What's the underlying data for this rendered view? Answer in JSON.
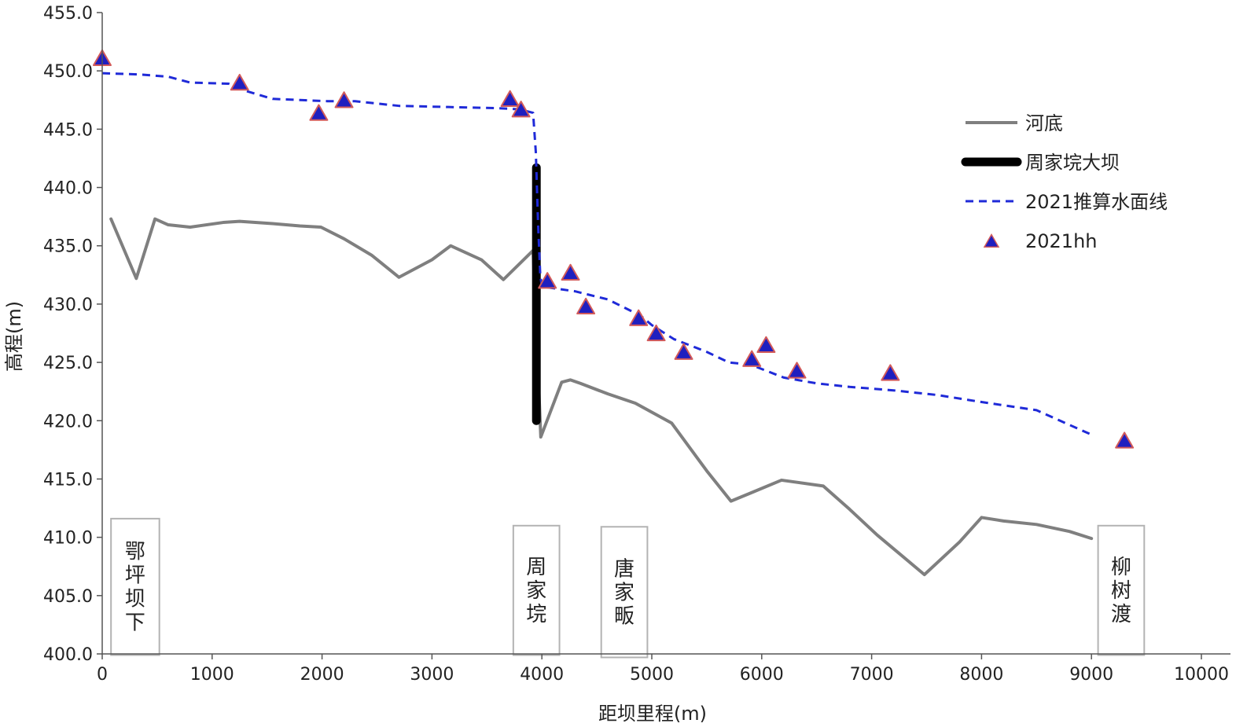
{
  "chart_data": {
    "type": "line",
    "title": "",
    "xlabel": "距坝里程(m)",
    "ylabel": "高程(m)",
    "xlim": [
      0,
      10000
    ],
    "ylim": [
      400,
      455
    ],
    "x_ticks": [
      0,
      1000,
      2000,
      3000,
      4000,
      5000,
      6000,
      7000,
      8000,
      9000,
      10000
    ],
    "y_ticks": [
      400.0,
      405.0,
      410.0,
      415.0,
      420.0,
      425.0,
      430.0,
      435.0,
      440.0,
      445.0,
      450.0,
      455.0
    ],
    "x_tick_labels": [
      "0",
      "1000",
      "2000",
      "3000",
      "4000",
      "5000",
      "6000",
      "7000",
      "8000",
      "9000",
      "10000"
    ],
    "y_tick_labels": [
      "400.0",
      "405.0",
      "410.0",
      "415.0",
      "420.0",
      "425.0",
      "430.0",
      "435.0",
      "440.0",
      "445.0",
      "450.0",
      "455.0"
    ],
    "grid": false,
    "legend_position": "right",
    "series": [
      {
        "name": "河底",
        "style": "line",
        "color": "#7f7f7f",
        "x": [
          80,
          310,
          480,
          600,
          800,
          1100,
          1250,
          1550,
          1800,
          1990,
          2200,
          2450,
          2700,
          3000,
          3170,
          3450,
          3650,
          3920,
          3990,
          4180,
          4260,
          4350,
          4600,
          4850,
          5180,
          5500,
          5720,
          5900,
          6180,
          6560,
          6800,
          7050,
          7480,
          7800,
          8000,
          8200,
          8500,
          8800,
          9000
        ],
        "y": [
          437.3,
          432.2,
          437.3,
          436.8,
          436.6,
          437.0,
          437.1,
          436.9,
          436.7,
          436.6,
          435.6,
          434.2,
          432.3,
          433.8,
          435.0,
          433.8,
          432.1,
          434.6,
          418.6,
          423.3,
          423.5,
          423.2,
          422.3,
          421.5,
          419.8,
          415.7,
          413.1,
          413.8,
          414.9,
          414.4,
          412.4,
          410.2,
          406.8,
          409.6,
          411.7,
          411.4,
          411.1,
          410.5,
          409.9
        ]
      },
      {
        "name": "周家垸大坝",
        "style": "thick-line",
        "color": "#000000",
        "x": [
          3950,
          3950
        ],
        "y": [
          441.7,
          420.0
        ]
      },
      {
        "name": "2021推算水面线",
        "style": "dashed-line",
        "color": "#1f2ad8",
        "x": [
          0,
          330,
          600,
          800,
          1150,
          1300,
          1550,
          1800,
          2050,
          2300,
          2700,
          3150,
          3600,
          3800,
          3920,
          3945,
          3950,
          3965,
          3985,
          4000,
          4300,
          4600,
          4900,
          5000,
          5200,
          5500,
          5700,
          5900,
          6200,
          6500,
          6800,
          7200,
          7600,
          8000,
          8500,
          9000
        ],
        "y": [
          449.8,
          449.7,
          449.5,
          449.0,
          448.9,
          448.3,
          447.6,
          447.5,
          447.4,
          447.4,
          447.0,
          446.9,
          446.8,
          446.7,
          446.4,
          443.0,
          441.5,
          437.0,
          432.5,
          431.5,
          431.1,
          430.4,
          429.0,
          428.2,
          427.0,
          425.9,
          425.0,
          424.8,
          423.7,
          423.2,
          422.9,
          422.6,
          422.2,
          421.6,
          420.9,
          418.8
        ]
      },
      {
        "name": "2021hh",
        "style": "triangle-marker",
        "color": "#1f1fbf",
        "edge_color": "#d25a5a",
        "x": [
          0,
          1250,
          1970,
          2200,
          3710,
          3810,
          4050,
          4260,
          4400,
          4880,
          5040,
          5290,
          5910,
          6040,
          6320,
          7170,
          9300
        ],
        "y": [
          451.0,
          448.9,
          446.3,
          447.4,
          447.5,
          446.6,
          431.9,
          432.6,
          429.7,
          428.7,
          427.4,
          425.8,
          425.2,
          426.4,
          424.2,
          424.0,
          418.2
        ]
      }
    ],
    "annotations": [
      {
        "text": "鄂坪坝下",
        "x_range": [
          80,
          520
        ],
        "y_range": [
          399.9,
          411.6
        ]
      },
      {
        "text": "周家垸",
        "x_range": [
          3740,
          4160
        ],
        "y_range": [
          399.9,
          411.0
        ]
      },
      {
        "text": "唐家畈",
        "x_range": [
          4540,
          4960
        ],
        "y_range": [
          399.7,
          410.9
        ]
      },
      {
        "text": "柳树渡",
        "x_range": [
          9060,
          9480
        ],
        "y_range": [
          399.9,
          411.0
        ]
      }
    ]
  }
}
